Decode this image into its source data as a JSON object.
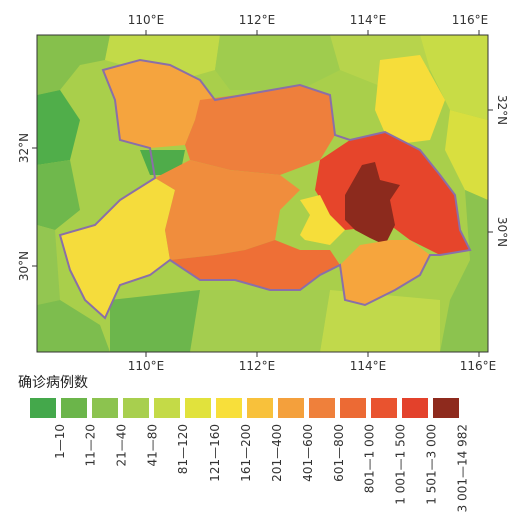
{
  "map": {
    "top_ticks": [
      "110°E",
      "112°E",
      "114°E",
      "116°E"
    ],
    "bottom_ticks": [
      "110°E",
      "112°E",
      "114°E",
      "116°E"
    ],
    "left_ticks": [
      "32°N",
      "30°N"
    ],
    "right_ticks": [
      "32°N",
      "30°N"
    ]
  },
  "legend": {
    "title": "确诊病例数",
    "items": [
      {
        "label": "1—10",
        "color": "#44a84b"
      },
      {
        "label": "11—20",
        "color": "#6bb54a"
      },
      {
        "label": "21—40",
        "color": "#8cc34f"
      },
      {
        "label": "41—80",
        "color": "#a8cf4e"
      },
      {
        "label": "81—120",
        "color": "#c4da47"
      },
      {
        "label": "121—160",
        "color": "#e1e23c"
      },
      {
        "label": "161—200",
        "color": "#f8df3a"
      },
      {
        "label": "201—400",
        "color": "#f8c13b"
      },
      {
        "label": "401—600",
        "color": "#f4a03c"
      },
      {
        "label": "601—800",
        "color": "#ef803b"
      },
      {
        "label": "801—1 000",
        "color": "#ec6a34"
      },
      {
        "label": "1 001—1 500",
        "color": "#e9532f"
      },
      {
        "label": "1 501—3 000",
        "color": "#e3412b"
      },
      {
        "label": "3 001—14 982",
        "color": "#8e2a1d"
      }
    ]
  }
}
